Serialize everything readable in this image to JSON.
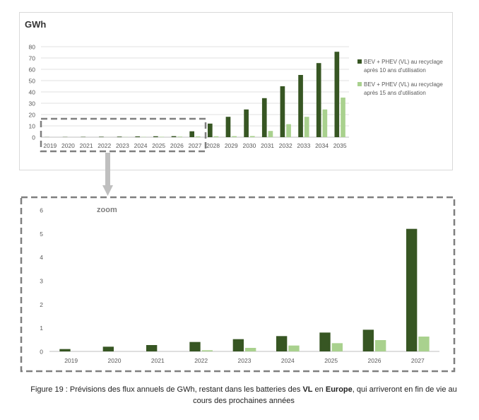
{
  "chart_data": [
    {
      "type": "bar",
      "title": "GWh",
      "categories": [
        "2019",
        "2020",
        "2021",
        "2022",
        "2023",
        "2024",
        "2025",
        "2026",
        "2027",
        "2028",
        "2029",
        "2030",
        "2031",
        "2032",
        "2033",
        "2034",
        "2035"
      ],
      "series": [
        {
          "name": "BEV + PHEV (VL) au recyclage après 10 ans d'utilisation",
          "color": "#375623",
          "values": [
            0.1,
            0.2,
            0.3,
            0.4,
            0.5,
            0.7,
            0.8,
            0.9,
            5.2,
            12,
            18,
            24.5,
            34.5,
            45,
            55,
            65.5,
            75.5
          ]
        },
        {
          "name": "BEV + PHEV (VL) au recyclage après 15 ans d'utilisation",
          "color": "#a9d18e",
          "values": [
            0,
            0,
            0,
            0.05,
            0.15,
            0.25,
            0.35,
            0.5,
            0.65,
            0.8,
            0.9,
            1,
            5.5,
            11.5,
            18,
            24.5,
            35
          ]
        }
      ],
      "legend_lines": [
        [
          "BEV + PHEV (VL) au recyclage",
          "après 10 ans d'utilisation"
        ],
        [
          "BEV + PHEV (VL) au recyclage",
          "après 15 ans d'utilisation"
        ]
      ],
      "ylim": [
        0,
        80
      ],
      "yticks": [
        0,
        10,
        20,
        30,
        40,
        50,
        60,
        70,
        80
      ],
      "grid": true,
      "legend": "right"
    },
    {
      "type": "bar",
      "title": "zoom",
      "categories": [
        "2019",
        "2020",
        "2021",
        "2022",
        "2023",
        "2024",
        "2025",
        "2026",
        "2027"
      ],
      "series": [
        {
          "name": "BEV + PHEV (VL) au recyclage après 10 ans d'utilisation",
          "color": "#375623",
          "values": [
            0.1,
            0.2,
            0.27,
            0.4,
            0.52,
            0.65,
            0.8,
            0.92,
            5.2
          ]
        },
        {
          "name": "BEV + PHEV (VL) au recyclage après 15 ans d'utilisation",
          "color": "#a9d18e",
          "values": [
            0,
            0,
            0,
            0.05,
            0.15,
            0.25,
            0.35,
            0.48,
            0.63
          ]
        }
      ],
      "ylim": [
        0,
        6
      ],
      "yticks": [
        0,
        1,
        2,
        3,
        4,
        5,
        6
      ],
      "grid": false,
      "legend": "none"
    }
  ],
  "caption": {
    "prefix": "Figure 19 : Prévisions des flux annuels de GWh, restant dans les batteries des ",
    "bold1": "VL",
    "mid": " en ",
    "bold2": "Europe",
    "suffix": ", qui arriveront en fin de vie au cours des prochaines années"
  }
}
